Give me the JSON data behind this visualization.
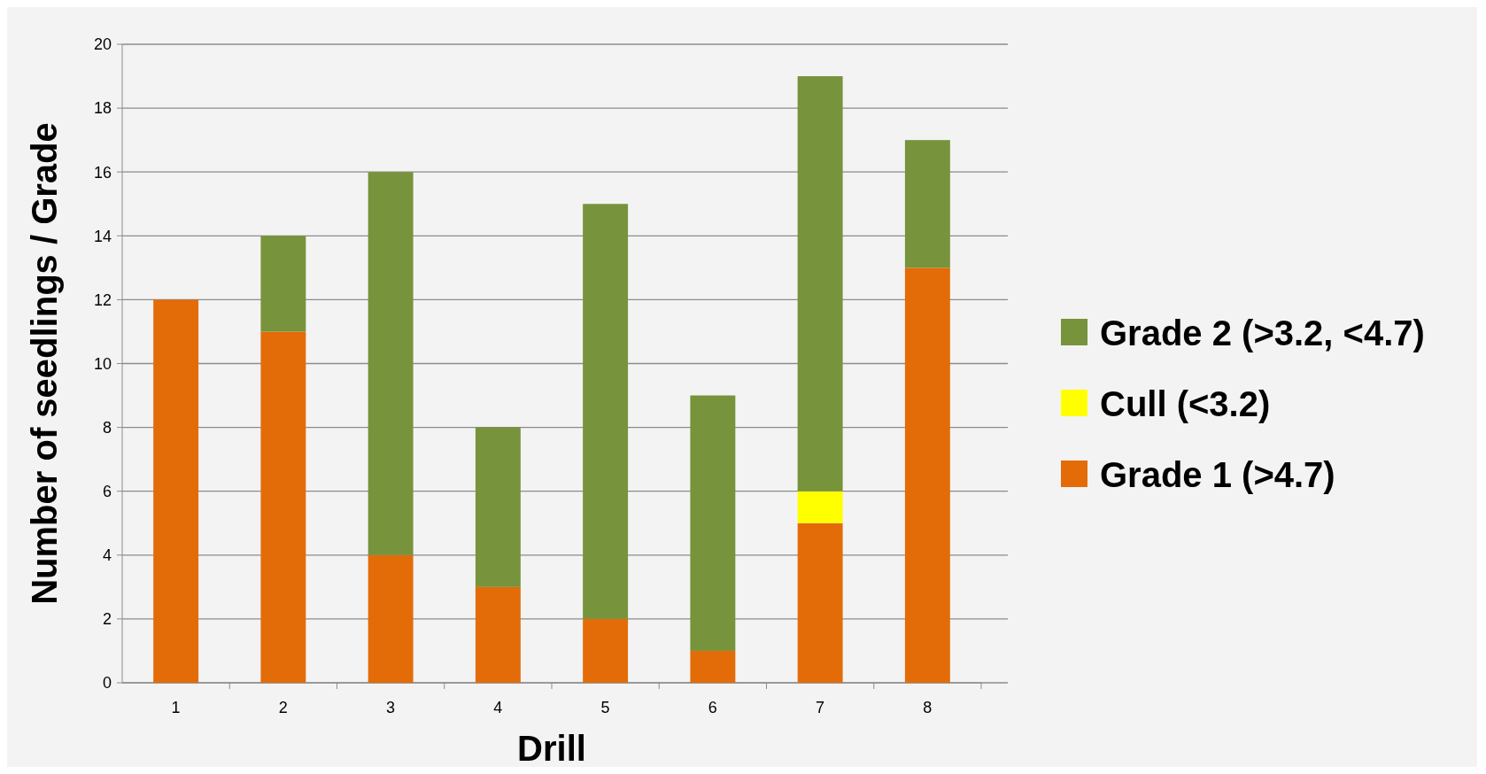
{
  "chart_data": {
    "type": "bar",
    "stacked": true,
    "xlabel": "Drill",
    "ylabel": "Number of seedlings / Grade",
    "categories": [
      "1",
      "2",
      "3",
      "4",
      "5",
      "6",
      "7",
      "8"
    ],
    "series": [
      {
        "name": "Grade 1 (>4.7)",
        "color": "#e36c09",
        "values": [
          12,
          11,
          4,
          3,
          2,
          1,
          5,
          13
        ]
      },
      {
        "name": "Cull (<3.2)",
        "color": "#ffff00",
        "values": [
          0,
          0,
          0,
          0,
          0,
          0,
          1,
          0
        ]
      },
      {
        "name": "Grade 2 (>3.2, <4.7)",
        "color": "#77933c",
        "values": [
          0,
          3,
          12,
          5,
          13,
          8,
          13,
          4
        ]
      }
    ],
    "ylim": [
      0,
      20
    ],
    "yticks": [
      0,
      2,
      4,
      6,
      8,
      10,
      12,
      14,
      16,
      18,
      20
    ],
    "grid": "y",
    "legend": "right"
  }
}
